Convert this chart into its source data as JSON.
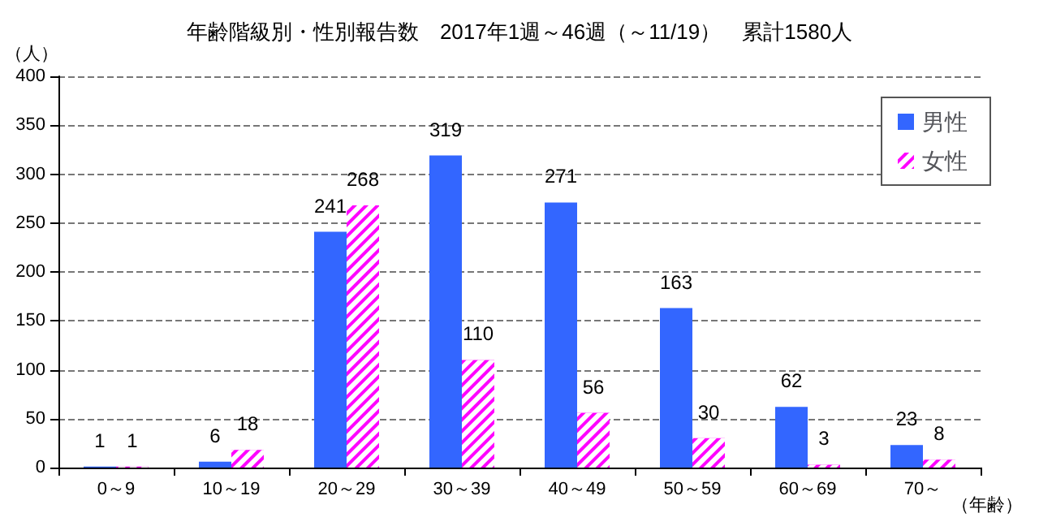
{
  "chart_data": {
    "type": "bar",
    "title": "年齢階級別・性別報告数　2017年1週～46週（～11/19）　累計1580人",
    "xlabel": "（年齢）",
    "ylabel": "（人）",
    "categories": [
      "0～9",
      "10～19",
      "20～29",
      "30～39",
      "40～49",
      "50～59",
      "60～69",
      "70～"
    ],
    "series": [
      {
        "name": "男性",
        "color": "#3366ff",
        "values": [
          1,
          6,
          241,
          319,
          271,
          163,
          62,
          23
        ]
      },
      {
        "name": "女性",
        "color": "#ff00ff",
        "values": [
          1,
          18,
          268,
          110,
          56,
          30,
          3,
          8
        ]
      }
    ],
    "ylim": [
      0,
      400
    ],
    "yticks": [
      0,
      50,
      100,
      150,
      200,
      250,
      300,
      350,
      400
    ],
    "grid": "y",
    "legend": "top right",
    "data_labels": true
  }
}
